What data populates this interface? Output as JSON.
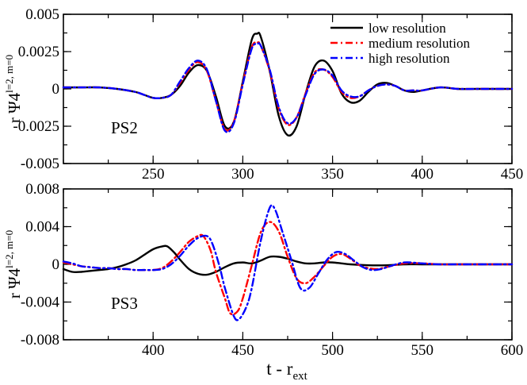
{
  "chart_data": [
    {
      "type": "line",
      "panel_label": "PS2",
      "ylabel": "r Ψ4",
      "ylabel_superscript": "l=2, m=0",
      "xlabel": "",
      "xlim": [
        200,
        450
      ],
      "ylim": [
        -0.005,
        0.005
      ],
      "xticks": [
        250,
        300,
        350,
        400,
        450
      ],
      "xtick_labels": [
        "250",
        "300",
        "350",
        "400",
        "450"
      ],
      "yticks": [
        -0.005,
        -0.0025,
        0,
        0.0025,
        0.005
      ],
      "ytick_labels": [
        "-0.005",
        "-0.0025",
        "0",
        "0.0025",
        "0.005"
      ],
      "legend_position": "top-right",
      "series": [
        {
          "name": "low resolution",
          "color": "#000000",
          "style": "solid",
          "x": [
            200,
            210,
            220,
            230,
            240,
            245,
            250,
            255,
            260,
            265,
            270,
            275,
            280,
            285,
            290,
            295,
            300,
            305,
            308,
            310,
            315,
            320,
            325,
            330,
            335,
            340,
            345,
            350,
            355,
            360,
            365,
            370,
            375,
            380,
            385,
            390,
            395,
            400,
            410,
            420,
            430,
            440,
            450
          ],
          "y": [
            0.0001,
            0.0001,
            0.0001,
            0,
            -0.0002,
            -0.0004,
            -0.0006,
            -0.0006,
            -0.0004,
            0.0002,
            0.0011,
            0.0016,
            0.0012,
            -0.0005,
            -0.0025,
            -0.0022,
            0.0005,
            0.0033,
            0.0037,
            0.0035,
            0.0012,
            -0.0018,
            -0.0031,
            -0.0025,
            -0.0003,
            0.0015,
            0.0019,
            0.0012,
            -0.0003,
            -0.0009,
            -0.0008,
            -0.0002,
            0.0003,
            0.0004,
            0.0002,
            -0.0001,
            -0.0002,
            -0.0001,
            0.0001,
            0,
            0,
            0,
            0
          ]
        },
        {
          "name": "medium resolution",
          "color": "#ff0000",
          "style": "dash-dot",
          "x": [
            200,
            210,
            220,
            230,
            240,
            245,
            250,
            255,
            260,
            265,
            270,
            275,
            280,
            285,
            290,
            295,
            300,
            305,
            308,
            310,
            315,
            320,
            325,
            330,
            335,
            340,
            345,
            350,
            355,
            360,
            365,
            370,
            375,
            380,
            385,
            390,
            395,
            400,
            410,
            420,
            430,
            440,
            450
          ],
          "y": [
            0.0001,
            0.0001,
            0.0001,
            0,
            -0.0002,
            -0.0004,
            -0.0006,
            -0.0006,
            -0.0004,
            0.0004,
            0.0013,
            0.0018,
            0.0012,
            -0.0008,
            -0.0027,
            -0.0022,
            0.0004,
            0.0028,
            0.0031,
            0.0029,
            0.0012,
            -0.0013,
            -0.0024,
            -0.0019,
            -0.0003,
            0.0011,
            0.0013,
            0.0008,
            -0.0002,
            -0.0006,
            -0.0005,
            -0.0001,
            0.0002,
            0.0003,
            0.0002,
            -0.0001,
            -0.0001,
            -0.0001,
            0.0001,
            0,
            0,
            0,
            0
          ]
        },
        {
          "name": "high resolution",
          "color": "#0000ff",
          "style": "dash-dot",
          "x": [
            200,
            210,
            220,
            230,
            240,
            245,
            250,
            255,
            260,
            265,
            270,
            275,
            280,
            285,
            290,
            295,
            300,
            305,
            308,
            310,
            315,
            320,
            325,
            330,
            335,
            340,
            345,
            350,
            355,
            360,
            365,
            370,
            375,
            380,
            385,
            390,
            395,
            400,
            410,
            420,
            430,
            440,
            450
          ],
          "y": [
            0.0001,
            0.0001,
            0.0001,
            0,
            -0.0002,
            -0.0004,
            -0.0006,
            -0.0006,
            -0.0004,
            0.0005,
            0.0014,
            0.0019,
            0.0013,
            -0.0008,
            -0.0028,
            -0.0023,
            0.0003,
            0.0027,
            0.003,
            0.0029,
            0.0013,
            -0.0012,
            -0.0023,
            -0.0019,
            -0.0004,
            0.001,
            0.0013,
            0.0009,
            -0.0001,
            -0.0005,
            -0.0005,
            -0.0001,
            0.0002,
            0.0003,
            0.0002,
            -0.0001,
            -0.0001,
            -0.0001,
            0.0001,
            0,
            0,
            0,
            0
          ]
        }
      ]
    },
    {
      "type": "line",
      "panel_label": "PS3",
      "ylabel": "r Ψ4",
      "ylabel_superscript": "l=2, m=0",
      "xlabel": "t - r",
      "xlabel_subscript": "ext",
      "xlim": [
        350,
        600
      ],
      "ylim": [
        -0.008,
        0.008
      ],
      "xticks": [
        400,
        450,
        500,
        550,
        600
      ],
      "xtick_labels": [
        "400",
        "450",
        "500",
        "550",
        "600"
      ],
      "yticks": [
        -0.008,
        -0.004,
        0,
        0.004,
        0.008
      ],
      "ytick_labels": [
        "-0.008",
        "-0.004",
        "0",
        "0.004",
        "0.008"
      ],
      "series": [
        {
          "name": "low resolution",
          "color": "#000000",
          "style": "solid",
          "x": [
            350,
            355,
            360,
            365,
            370,
            375,
            380,
            385,
            390,
            395,
            400,
            405,
            408,
            412,
            415,
            420,
            425,
            430,
            435,
            440,
            445,
            450,
            455,
            460,
            465,
            470,
            475,
            480,
            485,
            490,
            495,
            500,
            505,
            510,
            520,
            530,
            540,
            550,
            560,
            570,
            580,
            590,
            600
          ],
          "y": [
            -0.0005,
            -0.0008,
            -0.0008,
            -0.0007,
            -0.0006,
            -0.0005,
            -0.0003,
            0,
            0.0004,
            0.001,
            0.0016,
            0.0019,
            0.0019,
            0.0012,
            0.0005,
            -0.0005,
            -0.001,
            -0.0011,
            -0.0008,
            -0.0003,
            0.0001,
            0.0002,
            0.0001,
            0.0004,
            0.0008,
            0.0008,
            0.0006,
            0.0003,
            0.0001,
            0.0001,
            0.0002,
            0.0002,
            0.0001,
            0,
            -0.0001,
            -0.0001,
            0,
            0,
            0,
            0,
            0,
            0,
            0
          ]
        },
        {
          "name": "medium resolution",
          "color": "#ff0000",
          "style": "dash-dot",
          "x": [
            350,
            355,
            360,
            365,
            370,
            375,
            380,
            385,
            390,
            395,
            400,
            405,
            410,
            415,
            420,
            425,
            428,
            432,
            435,
            440,
            443,
            447,
            450,
            455,
            460,
            465,
            470,
            475,
            480,
            485,
            490,
            495,
            500,
            505,
            510,
            515,
            520,
            525,
            530,
            540,
            550,
            560,
            570,
            580,
            590,
            600
          ],
          "y": [
            0.0002,
            0,
            -0.0002,
            -0.0003,
            -0.0004,
            -0.0004,
            -0.0005,
            -0.0005,
            -0.0006,
            -0.0006,
            -0.0006,
            -0.0004,
            0.0003,
            0.0013,
            0.0024,
            0.003,
            0.003,
            0.0015,
            -0.0008,
            -0.0036,
            -0.0052,
            -0.005,
            -0.0036,
            -0.0001,
            0.0034,
            0.0045,
            0.0035,
            0.0008,
            -0.0015,
            -0.002,
            -0.0013,
            -0.0002,
            0.0008,
            0.0011,
            0.0006,
            -0.0001,
            -0.0004,
            -0.0005,
            -0.0003,
            0.0001,
            0.0001,
            0,
            0,
            0,
            0,
            0
          ]
        },
        {
          "name": "high resolution",
          "color": "#0000ff",
          "style": "dash-dot",
          "x": [
            350,
            355,
            360,
            365,
            370,
            375,
            380,
            385,
            390,
            395,
            400,
            405,
            410,
            415,
            420,
            425,
            430,
            433,
            437,
            440,
            445,
            448,
            452,
            455,
            460,
            465,
            468,
            472,
            477,
            482,
            487,
            492,
            497,
            502,
            507,
            512,
            517,
            522,
            527,
            532,
            540,
            550,
            560,
            570,
            580,
            590,
            600
          ],
          "y": [
            0.0003,
            0.0001,
            -0.0002,
            -0.0003,
            -0.0004,
            -0.0004,
            -0.0005,
            -0.0005,
            -0.0006,
            -0.0006,
            -0.0006,
            -0.0005,
            0,
            0.0009,
            0.002,
            0.0028,
            0.003,
            0.0022,
            -0.0002,
            -0.0025,
            -0.0055,
            -0.0058,
            -0.0045,
            -0.0025,
            0.0025,
            0.006,
            0.0058,
            0.0035,
            0.0005,
            -0.0025,
            -0.0025,
            -0.001,
            0.0005,
            0.0013,
            0.0011,
            0.0004,
            -0.0003,
            -0.0006,
            -0.0005,
            -0.0002,
            0.0002,
            0.0001,
            0,
            0,
            0,
            0,
            0
          ]
        }
      ]
    }
  ]
}
